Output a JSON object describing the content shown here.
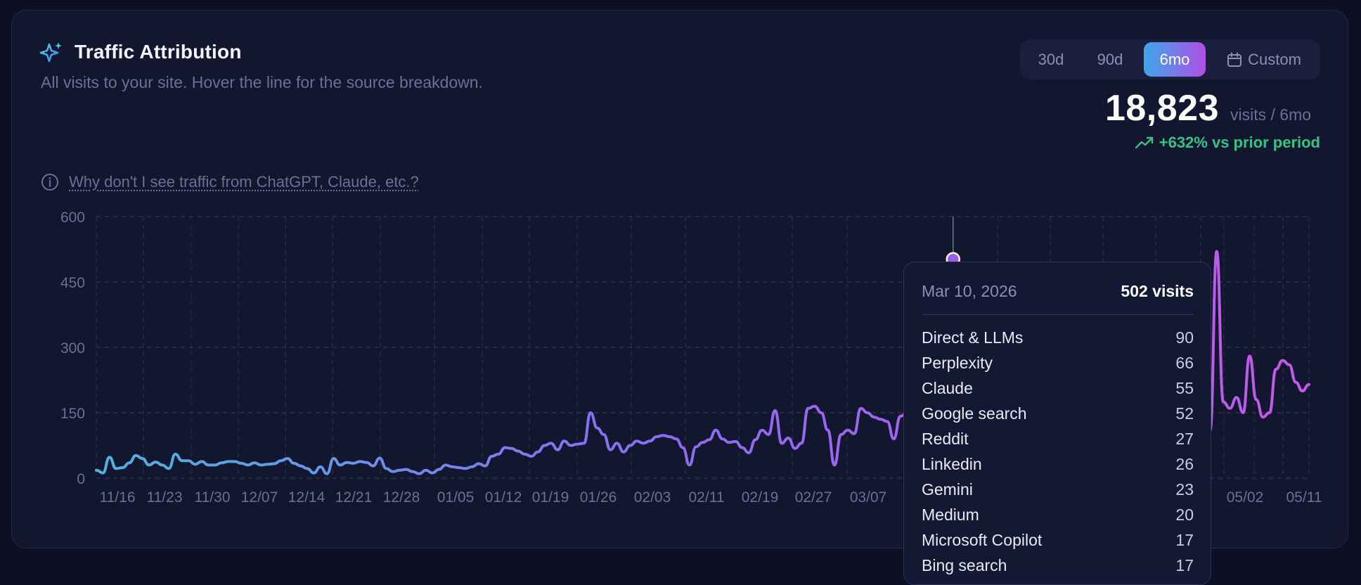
{
  "header": {
    "title": "Traffic Attribution",
    "subtitle": "All visits to your site. Hover the line for the source breakdown.",
    "icon": "sparkles-icon"
  },
  "range_selector": {
    "options": [
      "30d",
      "90d",
      "6mo",
      "Custom"
    ],
    "selected": "6mo",
    "custom_icon": "calendar-icon"
  },
  "summary": {
    "total": "18,823",
    "unit": "visits / 6mo",
    "change": "+632% vs prior period",
    "change_icon": "trending-up-icon"
  },
  "help_link": "Why don't I see traffic from ChatGPT, Claude, etc.?",
  "colors": {
    "line_start": "#4fb3e0",
    "line_mid": "#8a6cf0",
    "line_end": "#c25ae8",
    "positive": "#35c484"
  },
  "chart_data": {
    "type": "line",
    "title": "",
    "xlabel": "",
    "ylabel": "",
    "ylim": [
      0,
      600
    ],
    "yticks": [
      "0",
      "150",
      "300",
      "450",
      "600"
    ],
    "xticks": [
      "11/16",
      "11/23",
      "11/30",
      "12/07",
      "12/14",
      "12/21",
      "12/28",
      "01/05",
      "01/12",
      "01/19",
      "01/26",
      "02/03",
      "02/11",
      "02/19",
      "02/27",
      "03/07",
      "05/02",
      "05/11"
    ],
    "grid": true,
    "series": [
      {
        "values": [
          18,
          12,
          48,
          22,
          24,
          35,
          52,
          45,
          30,
          37,
          30,
          22,
          55,
          40,
          40,
          32,
          38,
          30,
          30,
          35,
          38,
          38,
          34,
          30,
          35,
          30,
          32,
          33,
          40,
          45,
          34,
          28,
          22,
          12,
          26,
          10,
          45,
          30,
          36,
          34,
          38,
          36,
          28,
          46,
          22,
          15,
          18,
          20,
          15,
          10,
          18,
          12,
          20,
          30,
          26,
          24,
          22,
          26,
          33,
          28,
          50,
          55,
          70,
          68,
          62,
          55,
          50,
          60,
          75,
          80,
          65,
          85,
          75,
          78,
          80,
          150,
          115,
          100,
          65,
          80,
          60,
          75,
          85,
          80,
          85,
          95,
          98,
          95,
          90,
          70,
          30,
          72,
          82,
          88,
          110,
          90,
          82,
          84,
          70,
          58,
          88,
          110,
          100,
          155,
          80,
          92,
          68,
          80,
          160,
          165,
          150,
          110,
          30,
          100,
          110,
          102,
          160,
          150,
          140,
          135,
          130,
          90,
          142,
          150,
          110,
          140,
          105,
          100,
          90,
          160,
          502,
          170,
          145,
          125,
          100,
          120,
          110,
          130,
          150,
          120,
          140,
          125,
          110,
          140,
          120,
          135,
          110,
          100,
          120,
          140,
          100,
          120,
          180,
          130,
          140,
          160,
          130,
          200,
          150,
          120,
          110,
          140,
          120,
          130,
          150,
          160,
          140,
          120,
          100,
          110,
          520,
          175,
          160,
          185,
          150,
          280,
          180,
          140,
          150,
          250,
          270,
          260,
          220,
          200,
          215
        ]
      }
    ],
    "highlight": {
      "date": "Mar 10, 2026",
      "visits": "502 visits",
      "value": 502
    }
  },
  "tooltip": {
    "date": "Mar 10, 2026",
    "total": "502 visits",
    "sources": [
      {
        "name": "Direct & LLMs",
        "value": "90"
      },
      {
        "name": "Perplexity",
        "value": "66"
      },
      {
        "name": "Claude",
        "value": "55"
      },
      {
        "name": "Google search",
        "value": "52"
      },
      {
        "name": "Reddit",
        "value": "27"
      },
      {
        "name": "Linkedin",
        "value": "26"
      },
      {
        "name": "Gemini",
        "value": "23"
      },
      {
        "name": "Medium",
        "value": "20"
      },
      {
        "name": "Microsoft Copilot",
        "value": "17"
      },
      {
        "name": "Bing search",
        "value": "17"
      }
    ]
  }
}
